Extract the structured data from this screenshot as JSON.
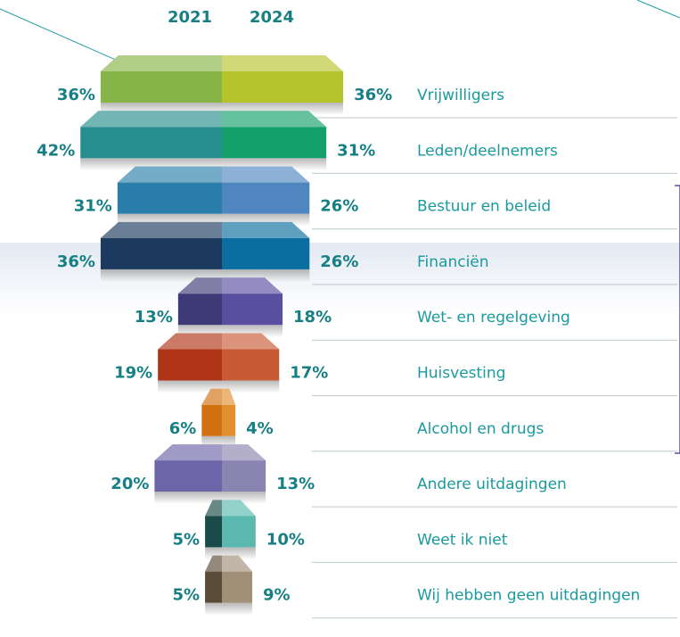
{
  "chart_data": {
    "type": "butterfly",
    "categories": [
      "Vrijwilligers",
      "Leden/deelnemers",
      "Bestuur en beleid",
      "Financiën",
      "Wet- en regelgeving",
      "Huisvesting",
      "Alcohol en drugs",
      "Andere uitdagingen",
      "Weet ik niet",
      "Wij hebben geen uitdagingen"
    ],
    "series": [
      {
        "name": "2021",
        "values": [
          36,
          42,
          31,
          36,
          13,
          19,
          6,
          20,
          5,
          5
        ],
        "value_labels": [
          "36%",
          "42%",
          "31%",
          "36%",
          "13%",
          "19%",
          "6%",
          "20%",
          "5%",
          "5%"
        ],
        "colors": [
          "#86b446",
          "#268e8e",
          "#2a7eaa",
          "#1b3a5e",
          "#3e3a78",
          "#b03418",
          "#d07010",
          "#6e64a8",
          "#1a4a48",
          "#5a4a38"
        ]
      },
      {
        "name": "2024",
        "values": [
          36,
          31,
          26,
          26,
          18,
          17,
          4,
          13,
          10,
          9
        ],
        "value_labels": [
          "36%",
          "31%",
          "26%",
          "26%",
          "18%",
          "17%",
          "4%",
          "13%",
          "10%",
          "9%"
        ],
        "colors": [
          "#b5c42a",
          "#14a06a",
          "#4f86c0",
          "#0a6ea0",
          "#5a4ea0",
          "#c85a36",
          "#e09030",
          "#8a84b0",
          "#5ab8b0",
          "#a09078"
        ]
      }
    ]
  }
}
